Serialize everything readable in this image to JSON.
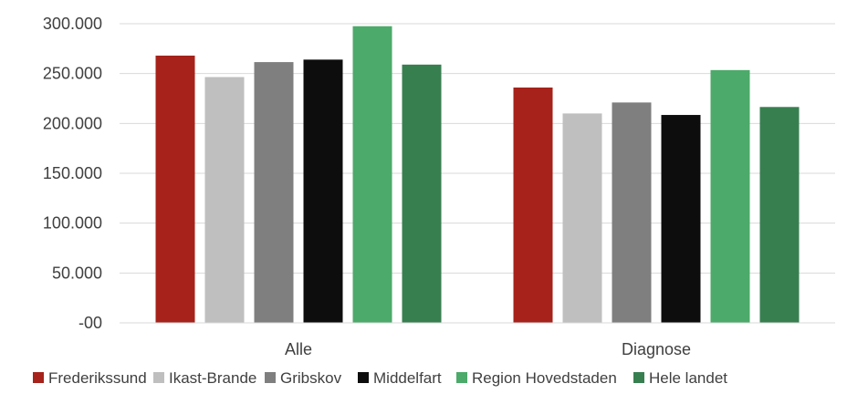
{
  "chart_data": {
    "type": "bar",
    "categories": [
      "Alle",
      "Diagnose"
    ],
    "series": [
      {
        "name": "Frederikssund",
        "color": "#a6221a",
        "values": [
          268000,
          236000
        ]
      },
      {
        "name": "Ikast-Brande",
        "color": "#bfbfbf",
        "values": [
          246500,
          210000
        ]
      },
      {
        "name": "Gribskov",
        "color": "#7f7f7f",
        "values": [
          261500,
          221000
        ]
      },
      {
        "name": "Middelfart",
        "color": "#0d0d0d",
        "values": [
          264000,
          208500
        ]
      },
      {
        "name": "Region Hovedstaden",
        "color": "#4caa6a",
        "values": [
          297500,
          253500
        ]
      },
      {
        "name": "Hele landet",
        "color": "#387f50",
        "values": [
          259000,
          216500
        ]
      }
    ],
    "ylim": [
      0,
      300000
    ],
    "y_ticks": [
      {
        "value": 0,
        "label": "-00"
      },
      {
        "value": 50000,
        "label": "50.000"
      },
      {
        "value": 100000,
        "label": "100.000"
      },
      {
        "value": 150000,
        "label": "150.000"
      },
      {
        "value": 200000,
        "label": "200.000"
      },
      {
        "value": 250000,
        "label": "250.000"
      },
      {
        "value": 300000,
        "label": "300.000"
      }
    ],
    "grid": true,
    "legend": "bottom"
  }
}
